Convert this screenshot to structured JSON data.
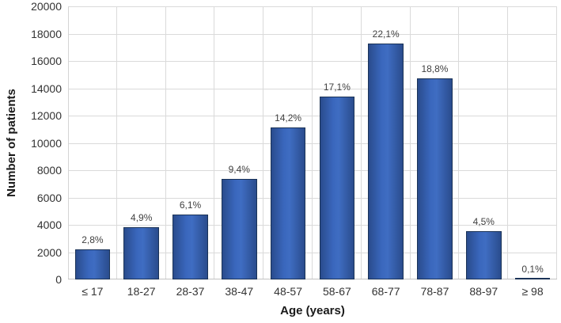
{
  "chart_data": {
    "type": "bar",
    "title": "",
    "xlabel": "Age (years)",
    "ylabel": "Number of patients",
    "categories": [
      "≤ 17",
      "18-27",
      "28-37",
      "38-47",
      "48-57",
      "58-67",
      "68-77",
      "78-87",
      "88-97",
      "≥ 98"
    ],
    "values": [
      2200,
      3840,
      4780,
      7360,
      11120,
      13390,
      17300,
      14720,
      3520,
      80
    ],
    "bar_labels": [
      "2,8%",
      "4,9%",
      "6,1%",
      "9,4%",
      "14,2%",
      "17,1%",
      "22,1%",
      "18,8%",
      "4,5%",
      "0,1%"
    ],
    "percentages": [
      2.8,
      4.9,
      6.1,
      9.4,
      14.2,
      17.1,
      22.1,
      18.8,
      4.5,
      0.1
    ],
    "ylim": [
      0,
      20000
    ],
    "ytick_step": 2000,
    "yticks": [
      0,
      2000,
      4000,
      6000,
      8000,
      10000,
      12000,
      14000,
      16000,
      18000,
      20000
    ],
    "grid": "horizontal and vertical gridlines on",
    "legend": "none",
    "colors": {
      "bar_fill_center": "#3f6dc2",
      "bar_fill_edge": "#2a4c8d",
      "bar_border": "#1b3357",
      "gridline": "#dadada",
      "axis_line": "#c2c2c2",
      "tick_text": "#333333",
      "bar_label_text": "#404040",
      "axis_title_text": "#1a1a1a",
      "background": "#ffffff"
    }
  }
}
